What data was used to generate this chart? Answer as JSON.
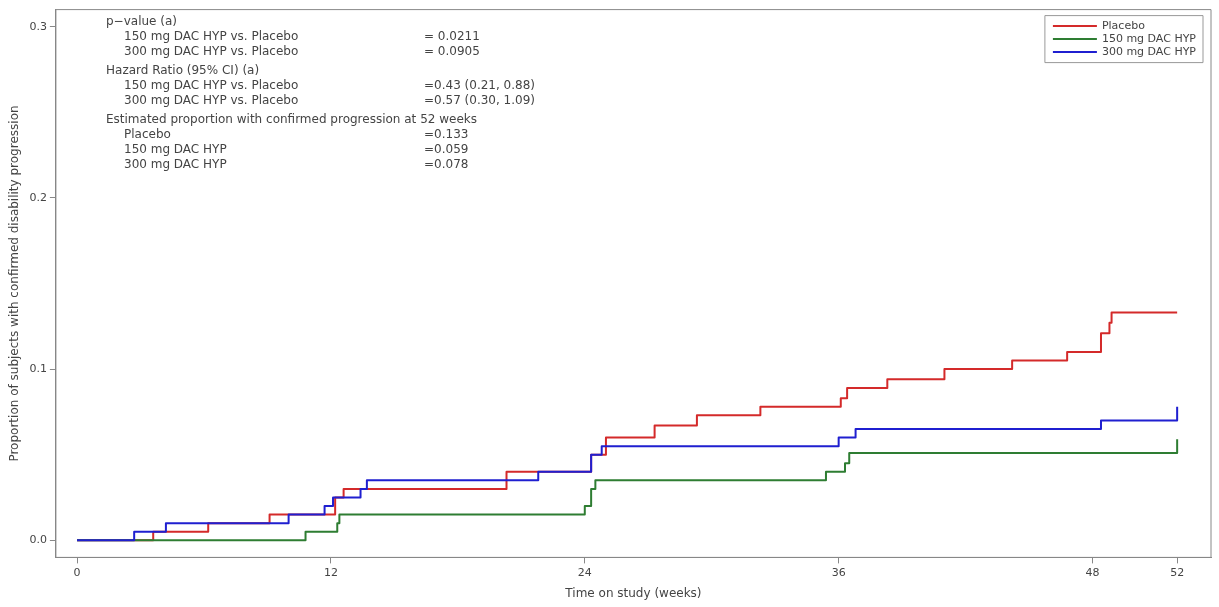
{
  "chart_data": {
    "type": "step",
    "xlabel": "Time on study (weeks)",
    "ylabel": "Proportion of subjects with confirmed disability progression",
    "xlim": [
      -1,
      53.6
    ],
    "xticks": [
      0,
      12,
      24,
      36,
      48,
      52
    ],
    "ylim": [
      -0.01,
      0.31
    ],
    "yticks": [
      {
        "value": 0,
        "label": "0.0"
      },
      {
        "value": 0.1,
        "label": "0.1"
      },
      {
        "value": 0.2,
        "label": "0.2"
      },
      {
        "value": 0.3,
        "label": "0.3"
      }
    ],
    "grid": false,
    "legend": "top right",
    "marker": "none",
    "line_style": "solid",
    "series": [
      {
        "name": "Placebo",
        "color": "#d42a2a",
        "x": [
          0,
          3.6,
          6.2,
          9.1,
          12.2,
          12.6,
          20.3,
          24.3,
          25,
          27.3,
          29.3,
          32.3,
          36.1,
          36.4,
          38.3,
          41,
          44.2,
          46.8,
          48.4,
          48.8,
          48.9,
          52
        ],
        "values": [
          0,
          0.005,
          0.01,
          0.015,
          0.025,
          0.03,
          0.04,
          0.05,
          0.06,
          0.067,
          0.073,
          0.078,
          0.083,
          0.089,
          0.094,
          0.1,
          0.105,
          0.11,
          0.121,
          0.127,
          0.133,
          0.133
        ]
      },
      {
        "name": "150 mg DAC HYP",
        "color": "#2e7d32",
        "x": [
          0,
          10.8,
          12.3,
          12.4,
          24,
          24.3,
          24.5,
          35.4,
          36.3,
          36.5,
          52,
          52
        ],
        "values": [
          0,
          0.005,
          0.01,
          0.015,
          0.02,
          0.03,
          0.035,
          0.04,
          0.045,
          0.051,
          0.051,
          0.059
        ]
      },
      {
        "name": "300 mg DAC HYP",
        "color": "#1f1fd0",
        "x": [
          0,
          2.7,
          4.2,
          10,
          11.7,
          12.1,
          13.4,
          13.7,
          21.8,
          24.3,
          24.8,
          36,
          36.8,
          48.4,
          52,
          52
        ],
        "values": [
          0,
          0.005,
          0.01,
          0.015,
          0.02,
          0.025,
          0.03,
          0.035,
          0.04,
          0.05,
          0.055,
          0.06,
          0.065,
          0.07,
          0.07,
          0.078
        ]
      }
    ],
    "annotations": [
      "p−value (a)",
      "150 mg DAC HYP vs. Placebo\t= 0.0211",
      "300 mg DAC HYP vs. Placebo\t= 0.0905",
      "Hazard Ratio (95% CI) (a)",
      "150 mg DAC HYP vs. Placebo\t=0.43 (0.21, 0.88)",
      "300 mg DAC HYP vs. Placebo\t=0.57 (0.30, 1.09)",
      "Estimated proportion with confirmed progression at 52 weeks",
      "Placebo\t=0.133",
      "150 mg DAC HYP\t=0.059",
      "300 mg DAC HYP\t=0.078"
    ]
  }
}
